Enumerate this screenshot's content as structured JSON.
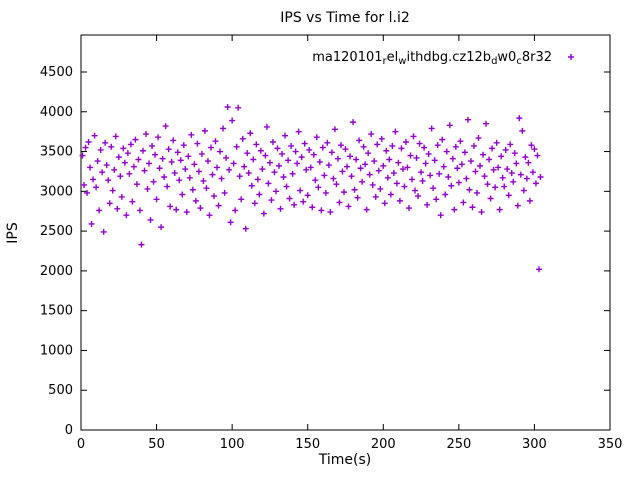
{
  "figure": {
    "title": "IPS vs Time for l.i2",
    "xlabel": "Time(s)",
    "ylabel": "IPS",
    "legend": {
      "label_plain": "ma120101_rel_withdbg.cz12b_dw0_c8r32",
      "segments": [
        {
          "t": "ma120101",
          "sub": false
        },
        {
          "t": "r",
          "sub": true
        },
        {
          "t": "el",
          "sub": false
        },
        {
          "t": "w",
          "sub": true
        },
        {
          "t": "ithdbg.cz12b",
          "sub": false
        },
        {
          "t": "d",
          "sub": true
        },
        {
          "t": "w0",
          "sub": false
        },
        {
          "t": "c",
          "sub": true
        },
        {
          "t": "8r32",
          "sub": false
        }
      ]
    },
    "colors": {
      "points": "#9400d3",
      "axis": "#000000",
      "background": "#ffffff"
    }
  },
  "chart_data": {
    "type": "scatter",
    "title": "IPS vs Time for l.i2",
    "xlabel": "Time(s)",
    "ylabel": "IPS",
    "xlim": [
      0,
      350
    ],
    "ylim": [
      0,
      4965
    ],
    "xticks": [
      0,
      50,
      100,
      150,
      200,
      250,
      300,
      350
    ],
    "yticks": [
      0,
      500,
      1000,
      1500,
      2000,
      2500,
      3000,
      3500,
      4000,
      4500
    ],
    "grid": false,
    "legend_position": "top-right-inside",
    "marker": "plus",
    "series": [
      {
        "name": "ma120101_rel_withdbg.cz12b_dw0_c8r32",
        "points": [
          [
            1,
            3450
          ],
          [
            2,
            3080
          ],
          [
            3,
            3550
          ],
          [
            4,
            2980
          ],
          [
            5,
            3620
          ],
          [
            6,
            3300
          ],
          [
            7,
            2590
          ],
          [
            8,
            3150
          ],
          [
            9,
            3700
          ],
          [
            10,
            3050
          ],
          [
            11,
            3380
          ],
          [
            12,
            2760
          ],
          [
            13,
            3520
          ],
          [
            14,
            3240
          ],
          [
            15,
            2490
          ],
          [
            16,
            3610
          ],
          [
            17,
            3330
          ],
          [
            18,
            3140
          ],
          [
            19,
            2850
          ],
          [
            20,
            3560
          ],
          [
            21,
            3010
          ],
          [
            22,
            3270
          ],
          [
            23,
            3690
          ],
          [
            24,
            2780
          ],
          [
            25,
            3430
          ],
          [
            26,
            3190
          ],
          [
            27,
            2930
          ],
          [
            28,
            3540
          ],
          [
            29,
            3360
          ],
          [
            30,
            2700
          ],
          [
            31,
            3480
          ],
          [
            32,
            3220
          ],
          [
            33,
            3590
          ],
          [
            34,
            2870
          ],
          [
            35,
            3310
          ],
          [
            36,
            3650
          ],
          [
            37,
            3090
          ],
          [
            38,
            3400
          ],
          [
            39,
            2760
          ],
          [
            40,
            2330
          ],
          [
            41,
            3510
          ],
          [
            42,
            3260
          ],
          [
            43,
            3720
          ],
          [
            44,
            3030
          ],
          [
            45,
            3350
          ],
          [
            46,
            2640
          ],
          [
            47,
            3570
          ],
          [
            48,
            3120
          ],
          [
            49,
            3460
          ],
          [
            50,
            2900
          ],
          [
            51,
            3680
          ],
          [
            52,
            3290
          ],
          [
            53,
            2550
          ],
          [
            54,
            3410
          ],
          [
            55,
            3180
          ],
          [
            56,
            3820
          ],
          [
            57,
            3060
          ],
          [
            58,
            3530
          ],
          [
            59,
            2810
          ],
          [
            60,
            3370
          ],
          [
            61,
            3640
          ],
          [
            62,
            3230
          ],
          [
            63,
            2770
          ],
          [
            64,
            3490
          ],
          [
            65,
            3140
          ],
          [
            66,
            3390
          ],
          [
            67,
            2960
          ],
          [
            68,
            3580
          ],
          [
            69,
            3280
          ],
          [
            70,
            2740
          ],
          [
            71,
            3440
          ],
          [
            72,
            3170
          ],
          [
            73,
            3710
          ],
          [
            74,
            3020
          ],
          [
            75,
            3340
          ],
          [
            76,
            2880
          ],
          [
            77,
            3600
          ],
          [
            78,
            3250
          ],
          [
            79,
            2790
          ],
          [
            80,
            3470
          ],
          [
            81,
            3130
          ],
          [
            82,
            3760
          ],
          [
            83,
            3040
          ],
          [
            84,
            3380
          ],
          [
            85,
            2700
          ],
          [
            86,
            3550
          ],
          [
            87,
            3210
          ],
          [
            88,
            2940
          ],
          [
            89,
            3630
          ],
          [
            90,
            3300
          ],
          [
            91,
            2820
          ],
          [
            92,
            3500
          ],
          [
            93,
            3160
          ],
          [
            94,
            3790
          ],
          [
            95,
            2980
          ],
          [
            96,
            3420
          ],
          [
            97,
            4060
          ],
          [
            98,
            3270
          ],
          [
            99,
            2610
          ],
          [
            100,
            3890
          ],
          [
            101,
            3350
          ],
          [
            102,
            2760
          ],
          [
            103,
            3560
          ],
          [
            104,
            4050
          ],
          [
            105,
            3190
          ],
          [
            106,
            2900
          ],
          [
            107,
            3660
          ],
          [
            108,
            3310
          ],
          [
            109,
            2530
          ],
          [
            110,
            3480
          ],
          [
            111,
            3230
          ],
          [
            112,
            3730
          ],
          [
            113,
            3070
          ],
          [
            114,
            3400
          ],
          [
            115,
            2850
          ],
          [
            116,
            3590
          ],
          [
            117,
            3150
          ],
          [
            118,
            2960
          ],
          [
            119,
            3510
          ],
          [
            120,
            3280
          ],
          [
            121,
            2720
          ],
          [
            122,
            3450
          ],
          [
            123,
            3810
          ],
          [
            124,
            3100
          ],
          [
            125,
            3360
          ],
          [
            126,
            2890
          ],
          [
            127,
            3620
          ],
          [
            128,
            3240
          ],
          [
            129,
            3000
          ],
          [
            130,
            3540
          ],
          [
            131,
            3320
          ],
          [
            132,
            2780
          ],
          [
            133,
            3470
          ],
          [
            134,
            3180
          ],
          [
            135,
            3700
          ],
          [
            136,
            3060
          ],
          [
            137,
            3390
          ],
          [
            138,
            2910
          ],
          [
            139,
            3570
          ],
          [
            140,
            3220
          ],
          [
            141,
            2830
          ],
          [
            142,
            3500
          ],
          [
            143,
            3350
          ],
          [
            144,
            3750
          ],
          [
            145,
            3010
          ],
          [
            146,
            3430
          ],
          [
            147,
            2870
          ],
          [
            148,
            3600
          ],
          [
            149,
            3270
          ],
          [
            150,
            2950
          ],
          [
            151,
            3520
          ],
          [
            152,
            3300
          ],
          [
            153,
            2800
          ],
          [
            154,
            3460
          ],
          [
            155,
            3140
          ],
          [
            156,
            3680
          ],
          [
            157,
            3050
          ],
          [
            158,
            3370
          ],
          [
            159,
            2760
          ],
          [
            160,
            3550
          ],
          [
            161,
            3200
          ],
          [
            162,
            2980
          ],
          [
            163,
            3610
          ],
          [
            164,
            3330
          ],
          [
            165,
            2740
          ],
          [
            166,
            3490
          ],
          [
            167,
            3160
          ],
          [
            168,
            3780
          ],
          [
            169,
            3090
          ],
          [
            170,
            3410
          ],
          [
            171,
            2860
          ],
          [
            172,
            3580
          ],
          [
            173,
            3250
          ],
          [
            174,
            2990
          ],
          [
            175,
            3530
          ],
          [
            176,
            3310
          ],
          [
            177,
            2810
          ],
          [
            178,
            3440
          ],
          [
            179,
            3190
          ],
          [
            180,
            3870
          ],
          [
            181,
            3020
          ],
          [
            182,
            3400
          ],
          [
            183,
            2920
          ],
          [
            184,
            3640
          ],
          [
            185,
            3290
          ],
          [
            186,
            3120
          ],
          [
            187,
            3560
          ],
          [
            188,
            3340
          ],
          [
            189,
            2770
          ],
          [
            190,
            3480
          ],
          [
            191,
            3210
          ],
          [
            192,
            3720
          ],
          [
            193,
            3080
          ],
          [
            194,
            3380
          ],
          [
            195,
            2930
          ],
          [
            196,
            3590
          ],
          [
            197,
            3260
          ],
          [
            198,
            3030
          ],
          [
            199,
            3660
          ],
          [
            200,
            3320
          ],
          [
            201,
            2850
          ],
          [
            202,
            3510
          ],
          [
            203,
            3170
          ],
          [
            204,
            3400
          ],
          [
            205,
            2960
          ],
          [
            206,
            3570
          ],
          [
            207,
            3230
          ],
          [
            208,
            3750
          ],
          [
            209,
            3100
          ],
          [
            210,
            3360
          ],
          [
            211,
            2880
          ],
          [
            212,
            3540
          ],
          [
            213,
            3280
          ],
          [
            214,
            3060
          ],
          [
            215,
            3620
          ],
          [
            216,
            3300
          ],
          [
            217,
            2790
          ],
          [
            218,
            3450
          ],
          [
            219,
            3150
          ],
          [
            220,
            3690
          ],
          [
            221,
            3010
          ],
          [
            222,
            3420
          ],
          [
            223,
            2940
          ],
          [
            224,
            3600
          ],
          [
            225,
            3240
          ],
          [
            226,
            3130
          ],
          [
            227,
            3550
          ],
          [
            228,
            3350
          ],
          [
            229,
            2830
          ],
          [
            230,
            3470
          ],
          [
            231,
            3200
          ],
          [
            232,
            3790
          ],
          [
            233,
            3040
          ],
          [
            234,
            3390
          ],
          [
            235,
            2900
          ],
          [
            236,
            3580
          ],
          [
            237,
            3220
          ],
          [
            238,
            2700
          ],
          [
            239,
            3650
          ],
          [
            240,
            3310
          ],
          [
            241,
            2960
          ],
          [
            242,
            3500
          ],
          [
            243,
            3180
          ],
          [
            244,
            3830
          ],
          [
            245,
            3070
          ],
          [
            246,
            3410
          ],
          [
            247,
            2770
          ],
          [
            248,
            3560
          ],
          [
            249,
            3290
          ],
          [
            250,
            3110
          ],
          [
            251,
            3630
          ],
          [
            252,
            3340
          ],
          [
            253,
            2860
          ],
          [
            254,
            3490
          ],
          [
            255,
            3160
          ],
          [
            256,
            3900
          ],
          [
            257,
            3020
          ],
          [
            258,
            3380
          ],
          [
            259,
            2800
          ],
          [
            260,
            3570
          ],
          [
            261,
            3250
          ],
          [
            262,
            2980
          ],
          [
            263,
            3670
          ],
          [
            264,
            3320
          ],
          [
            265,
            2740
          ],
          [
            266,
            3460
          ],
          [
            267,
            3190
          ],
          [
            268,
            3850
          ],
          [
            269,
            3090
          ],
          [
            270,
            3400
          ],
          [
            271,
            2910
          ],
          [
            272,
            3540
          ],
          [
            273,
            3270
          ],
          [
            274,
            3050
          ],
          [
            275,
            3610
          ],
          [
            276,
            3300
          ],
          [
            277,
            2770
          ],
          [
            278,
            3440
          ],
          [
            279,
            3170
          ],
          [
            280,
            3060
          ],
          [
            281,
            3520
          ],
          [
            282,
            3280
          ],
          [
            283,
            2950
          ],
          [
            284,
            3590
          ],
          [
            285,
            3230
          ],
          [
            286,
            3120
          ],
          [
            287,
            3480
          ],
          [
            288,
            3350
          ],
          [
            289,
            2820
          ],
          [
            290,
            3920
          ],
          [
            291,
            3210
          ],
          [
            292,
            3760
          ],
          [
            293,
            3010
          ],
          [
            294,
            3430
          ],
          [
            295,
            3160
          ],
          [
            296,
            3360
          ],
          [
            297,
            2880
          ],
          [
            298,
            3580
          ],
          [
            299,
            3240
          ],
          [
            300,
            3530
          ],
          [
            301,
            3100
          ],
          [
            302,
            3450
          ],
          [
            303,
            2020
          ],
          [
            304,
            3180
          ]
        ]
      }
    ]
  },
  "layout_note": ""
}
